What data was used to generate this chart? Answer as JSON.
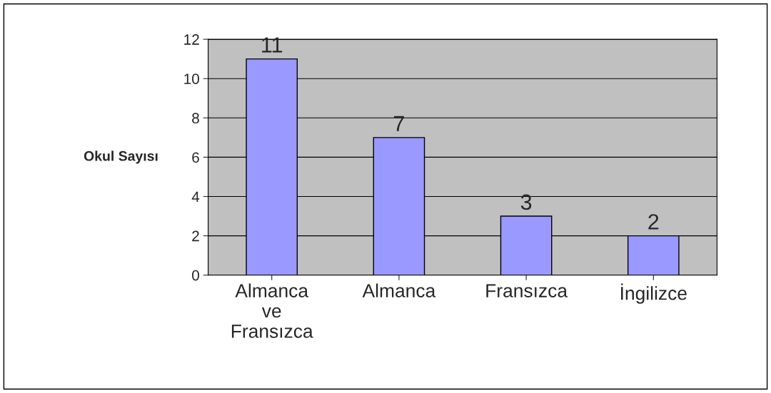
{
  "chart_data": {
    "type": "bar",
    "ylabel": "Okul Sayısı",
    "categories": [
      "Almanca ve Fransızca",
      "Almanca",
      "Fransızca",
      "İngilizce"
    ],
    "values": [
      11,
      7,
      3,
      2
    ],
    "color": "#9999ff",
    "ylim": [
      0,
      12
    ],
    "yticks": [
      0,
      2,
      4,
      6,
      8,
      10,
      12
    ],
    "grid": "y",
    "data_labels": true
  }
}
